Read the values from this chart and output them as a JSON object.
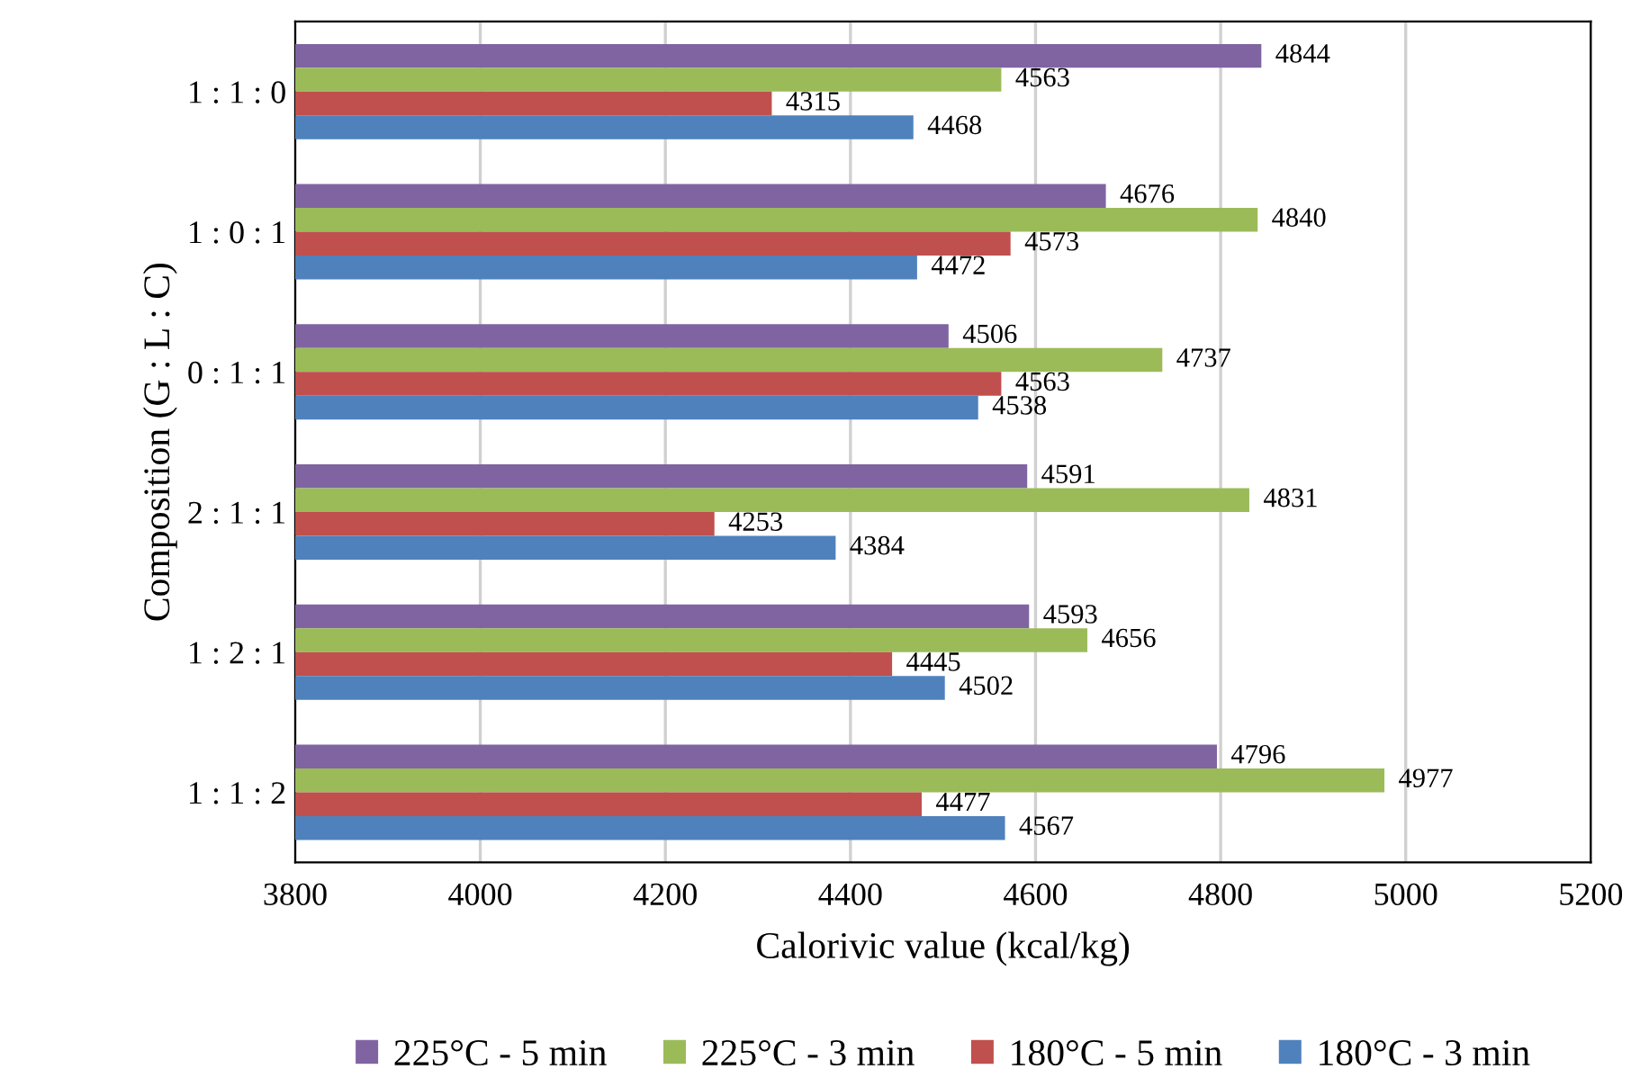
{
  "chart_data": {
    "type": "bar",
    "orientation": "horizontal",
    "xlabel": "Calorivic value (kcal/kg)",
    "ylabel": "Composition (G : L : C)",
    "categories": [
      "1 : 1 : 0",
      "1 : 0 : 1",
      "0 : 1 : 1",
      "2 : 1 : 1",
      "1 : 2 : 1",
      "1 : 1 : 2"
    ],
    "series": [
      {
        "name": "225°C - 5 min",
        "color": "#8064a2",
        "values": [
          4844,
          4676,
          4506,
          4591,
          4593,
          4796
        ]
      },
      {
        "name": "225°C - 3 min",
        "color": "#9bbb59",
        "values": [
          4563,
          4840,
          4737,
          4831,
          4656,
          4977
        ]
      },
      {
        "name": "180°C - 5 min",
        "color": "#c0504d",
        "values": [
          4315,
          4573,
          4563,
          4253,
          4445,
          4477
        ]
      },
      {
        "name": "180°C - 3 min",
        "color": "#4f81bd",
        "values": [
          4468,
          4472,
          4538,
          4384,
          4502,
          4567
        ]
      }
    ],
    "xlim": [
      3800,
      5200
    ],
    "xticks": [
      3800,
      4000,
      4200,
      4400,
      4600,
      4800,
      5000,
      5200
    ],
    "grid": "x",
    "legend": "bottom",
    "data_labels": true
  }
}
